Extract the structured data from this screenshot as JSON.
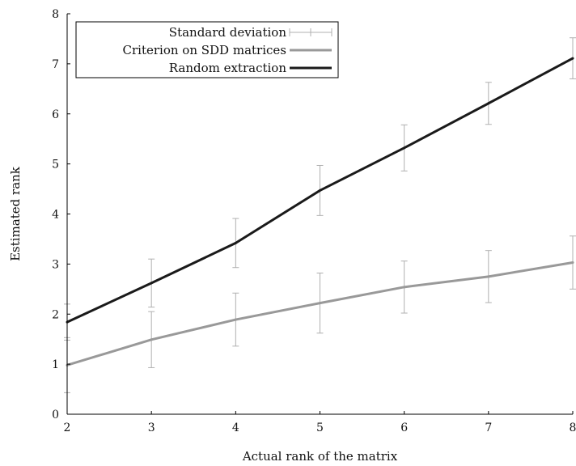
{
  "chart_data": {
    "type": "line",
    "xlabel": "Actual rank of the matrix",
    "ylabel": "Estimated rank",
    "xlim": [
      2,
      8
    ],
    "ylim": [
      0,
      8
    ],
    "x_ticks": [
      2,
      3,
      4,
      5,
      6,
      7,
      8
    ],
    "y_ticks": [
      0,
      1,
      2,
      3,
      4,
      5,
      6,
      7,
      8
    ],
    "grid": false,
    "legend_position": "top-left",
    "legend": [
      {
        "label": "Standard deviation",
        "kind": "errorbar",
        "color": "#b0b0b0"
      },
      {
        "label": "Criterion on SDD matrices",
        "kind": "line",
        "color": "#999999"
      },
      {
        "label": "Random extraction",
        "kind": "line",
        "color": "#1a1a1a"
      }
    ],
    "x": [
      2,
      3,
      4,
      5,
      6,
      7,
      8
    ],
    "series": [
      {
        "name": "Criterion on SDD matrices",
        "color": "#999999",
        "values": [
          0.98,
          1.49,
          1.89,
          2.22,
          2.54,
          2.75,
          3.03
        ],
        "std": [
          0.55,
          0.56,
          0.53,
          0.6,
          0.52,
          0.52,
          0.53
        ]
      },
      {
        "name": "Random extraction",
        "color": "#1a1a1a",
        "values": [
          1.84,
          2.62,
          3.42,
          4.47,
          5.32,
          6.21,
          7.11
        ],
        "std": [
          0.36,
          0.48,
          0.49,
          0.5,
          0.46,
          0.42,
          0.41
        ]
      }
    ]
  }
}
